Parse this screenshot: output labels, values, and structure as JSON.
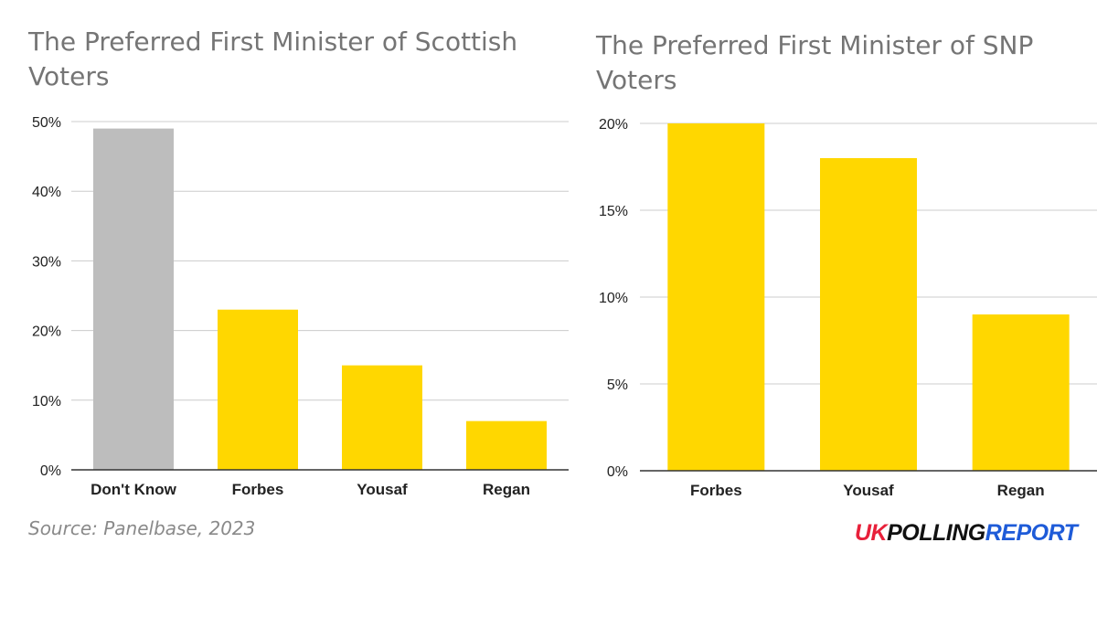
{
  "chart_data": [
    {
      "type": "bar",
      "title": "The Preferred First Minister of Scottish Voters",
      "categories": [
        "Don't Know",
        "Forbes",
        "Yousaf",
        "Regan"
      ],
      "values": [
        49,
        23,
        15,
        7
      ],
      "bar_colors": [
        "#bdbdbd",
        "#ffd700",
        "#ffd700",
        "#ffd700"
      ],
      "ylim": [
        0,
        50
      ],
      "yticks": [
        0,
        10,
        20,
        30,
        40,
        50
      ],
      "ytick_labels": [
        "0%",
        "10%",
        "20%",
        "30%",
        "40%",
        "50%"
      ],
      "grid": true,
      "legend": "none"
    },
    {
      "type": "bar",
      "title": "The Preferred First Minister of SNP Voters",
      "categories": [
        "Forbes",
        "Yousaf",
        "Regan"
      ],
      "values": [
        20,
        18,
        9
      ],
      "bar_colors": [
        "#ffd700",
        "#ffd700",
        "#ffd700"
      ],
      "ylim": [
        0,
        20
      ],
      "yticks": [
        0,
        5,
        10,
        15,
        20
      ],
      "ytick_labels": [
        "0%",
        "5%",
        "10%",
        "15%",
        "20%"
      ],
      "grid": true,
      "legend": "none"
    }
  ],
  "source": "Source: Panelbase, 2023",
  "logo": {
    "uk": "UK",
    "polling": "POLLING",
    "report": "REPORT",
    "colors": {
      "uk": "#e8203a",
      "polling": "#111111",
      "report": "#1e5bd8"
    }
  }
}
